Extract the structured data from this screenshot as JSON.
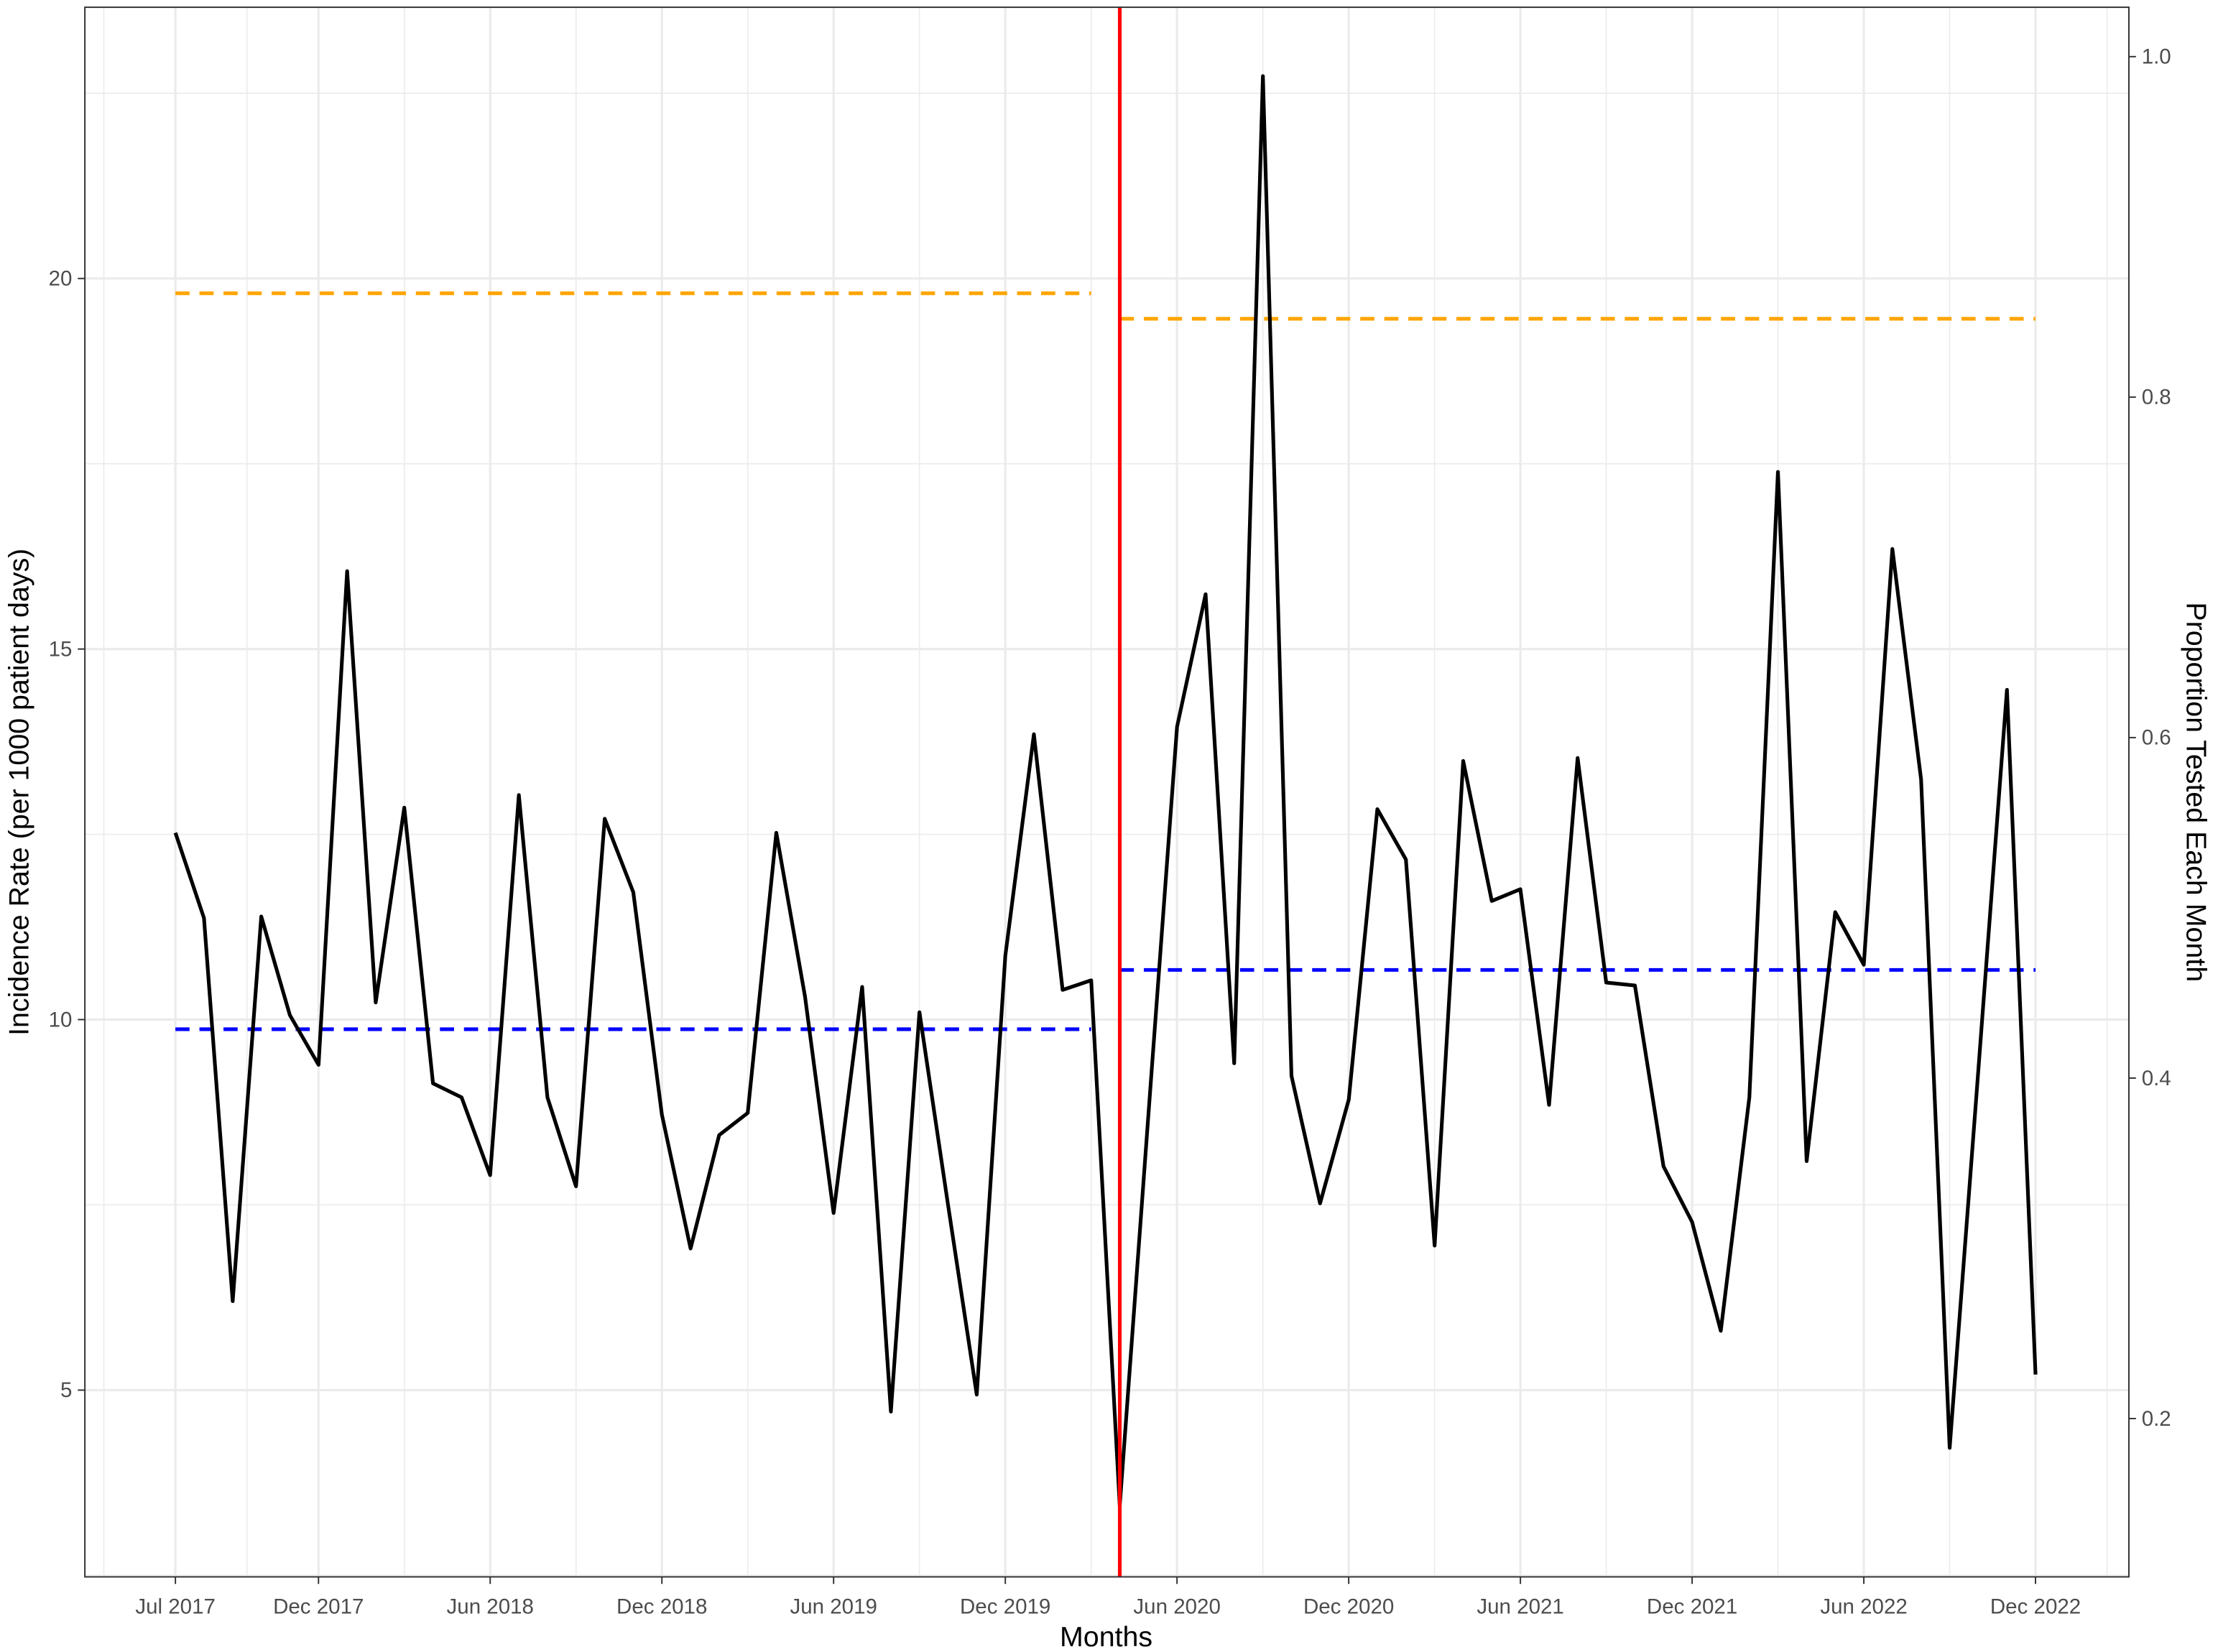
{
  "chart_data": {
    "type": "line",
    "title": "",
    "xlabel": "Months",
    "ylabel": "Incidence Rate (per 1000 patient days)",
    "ylabel_right": "Proportion Tested Each Month",
    "ylim": [
      2.48,
      23.66
    ],
    "ylim_right": [
      0.107,
      1.029
    ],
    "grid": true,
    "x_ticks": [
      "Jul 2017",
      "Dec 2017",
      "Jun 2018",
      "Dec 2018",
      "Jun 2019",
      "Dec 2019",
      "Jun 2020",
      "Dec 2020",
      "Jun 2021",
      "Dec 2021",
      "Jun 2022",
      "Dec 2022"
    ],
    "x_tick_month_index": [
      0,
      5,
      11,
      17,
      23,
      29,
      35,
      41,
      47,
      53,
      59,
      65
    ],
    "y_ticks": [
      5,
      10,
      15,
      20
    ],
    "y_ticks_right": [
      "0.2",
      "0.4",
      "0.6",
      "0.8",
      "1.0"
    ],
    "x_start": "Jul 2017",
    "x_end": "Dec 2022",
    "series": [
      {
        "axis": "left",
        "color": "#000000",
        "values": [
          12.52,
          11.37,
          6.2,
          11.39,
          10.06,
          9.39,
          16.05,
          10.23,
          12.86,
          9.14,
          8.95,
          7.9,
          13.03,
          8.95,
          7.75,
          12.71,
          11.72,
          8.72,
          6.91,
          8.44,
          8.74,
          12.52,
          10.31,
          7.39,
          10.44,
          4.71,
          10.1,
          7.5,
          4.94,
          10.86,
          13.85,
          10.4,
          10.53,
          3.44,
          8.7,
          13.95,
          15.74,
          9.41,
          22.73,
          9.24,
          7.52,
          8.92,
          12.84,
          12.16,
          6.95,
          13.49,
          11.6,
          11.76,
          8.85,
          13.53,
          10.5,
          10.46,
          8.02,
          7.27,
          5.8,
          8.95,
          17.39,
          8.09,
          11.45,
          10.74,
          16.35,
          13.24,
          4.22,
          9.3,
          14.45,
          5.21
        ]
      }
    ],
    "reference_lines": [
      {
        "axis": "left",
        "color": "#0000ff",
        "style": "dashed",
        "value": 9.87,
        "from": "Jul 2017",
        "to": "Mar 2020"
      },
      {
        "axis": "left",
        "color": "#0000ff",
        "style": "dashed",
        "value": 10.67,
        "from": "Apr 2020",
        "to": "Dec 2022"
      },
      {
        "axis": "right",
        "color": "#ffa500",
        "style": "dashed",
        "value": 0.861,
        "from": "Jul 2017",
        "to": "Mar 2020"
      },
      {
        "axis": "right",
        "color": "#ffa500",
        "style": "dashed",
        "value": 0.846,
        "from": "Apr 2020",
        "to": "Dec 2022"
      }
    ],
    "intervention_line": {
      "month": "Apr 2020",
      "color": "#ff0000"
    }
  }
}
